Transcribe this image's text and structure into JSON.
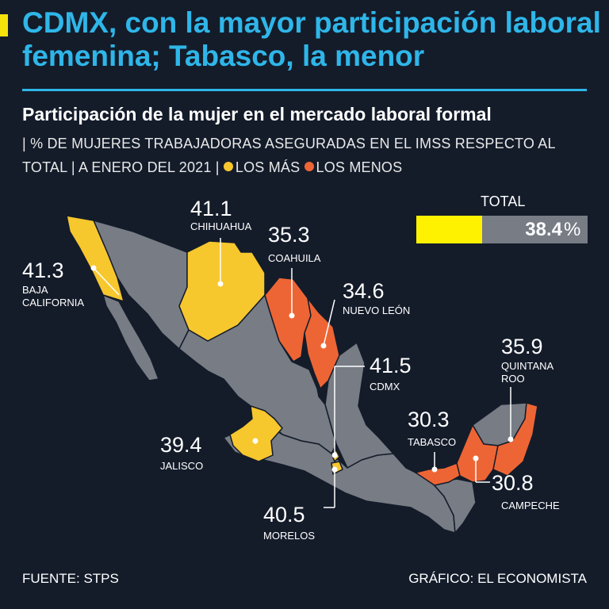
{
  "header": {
    "title": "CDMX, con la mayor participación laboral femenina; Tabasco, la menor",
    "subtitle": "Participación de la mujer en el mercado laboral formal",
    "description": "| % DE MUJERES TRABAJADORAS ASEGURADAS EN EL IMSS RESPECTO AL TOTAL | A ENERO DEL 2021 |",
    "legend_high": "LOS MÁS",
    "legend_low": "LOS MENOS"
  },
  "colors": {
    "title": "#2fb6e9",
    "background": "#141c2a",
    "base_state": "#777c85",
    "highest": "#f7c72e",
    "lowest": "#ee6535",
    "total_bar": "#fff200"
  },
  "total": {
    "label": "TOTAL",
    "value": "38.4",
    "unit": "%",
    "fraction": 0.384
  },
  "states": [
    {
      "name": "BAJA CALIFORNIA",
      "value": "41.3",
      "group": "high"
    },
    {
      "name": "CHIHUAHUA",
      "value": "41.1",
      "group": "high"
    },
    {
      "name": "COAHUILA",
      "value": "35.3",
      "group": "low"
    },
    {
      "name": "NUEVO LEÓN",
      "value": "34.6",
      "group": "low"
    },
    {
      "name": "CDMX",
      "value": "41.5",
      "group": "high"
    },
    {
      "name": "QUINTANA ROO",
      "value": "35.9",
      "group": "low"
    },
    {
      "name": "JALISCO",
      "value": "39.4",
      "group": "high"
    },
    {
      "name": "TABASCO",
      "value": "30.3",
      "group": "low"
    },
    {
      "name": "CAMPECHE",
      "value": "30.8",
      "group": "low"
    },
    {
      "name": "MORELOS",
      "value": "40.5",
      "group": "high"
    }
  ],
  "footer": {
    "source": "FUENTE: STPS",
    "credit": "GRÁFICO: EL ECONOMISTA"
  }
}
